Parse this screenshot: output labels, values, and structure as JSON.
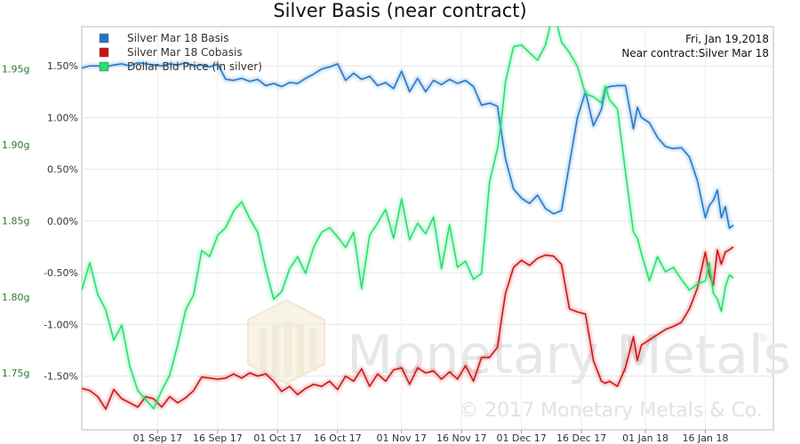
{
  "chart_data": {
    "type": "line",
    "title": "Silver Basis (near contract)",
    "annotation": {
      "date": "Fri, Jan 19,2018",
      "contract": "Near contract:Silver Mar 18"
    },
    "x_tick_labels": [
      "01 Sep 17",
      "16 Sep 17",
      "01 Oct 17",
      "16 Oct 17",
      "01 Nov 17",
      "16 Nov 17",
      "01 Dec 17",
      "16 Dec 17",
      "01 Jan 18",
      "16 Jan 18"
    ],
    "x_ticks": [
      4,
      19,
      34,
      49,
      65,
      80,
      95,
      110,
      126,
      141
    ],
    "xlim": [
      -15,
      158
    ],
    "y_left": {
      "ticks": [
        1.5,
        1.0,
        0.5,
        0.0,
        -0.5,
        -1.0,
        -1.5
      ],
      "tick_labels": [
        "1.50%",
        "1.00%",
        "0.50%",
        "0.00%",
        "-0.50%",
        "-1.00%",
        "-1.50%"
      ],
      "ylim": [
        -2.02,
        1.88
      ]
    },
    "y_right": {
      "ticks": [
        1.95,
        1.9,
        1.85,
        1.8,
        1.75
      ],
      "tick_labels": [
        "1.95g",
        "1.90g",
        "1.85g",
        "1.80g",
        "1.75g"
      ],
      "ylim": [
        1.7127,
        1.9776
      ]
    },
    "grid": true,
    "legend": "top-left",
    "series": [
      {
        "name": "Silver Mar 18 Basis",
        "color": "#1f77c8",
        "axis": "left",
        "x": [
          -15,
          -13,
          -11,
          -9,
          -7,
          -5,
          -3,
          -1,
          1,
          3,
          5,
          7,
          9,
          11,
          13,
          15,
          17,
          19,
          21,
          23,
          25,
          27,
          29,
          31,
          33,
          35,
          37,
          39,
          41,
          43,
          45,
          47,
          49,
          51,
          53,
          55,
          57,
          59,
          61,
          63,
          65,
          67,
          69,
          71,
          73,
          75,
          77,
          79,
          81,
          83,
          85,
          87,
          89,
          90,
          91,
          93,
          95,
          97,
          99,
          101,
          103,
          105,
          107,
          109,
          111,
          113,
          115,
          116,
          117,
          119,
          121,
          123,
          124,
          125,
          127,
          129,
          131,
          133,
          135,
          137,
          139,
          141,
          142,
          143,
          144,
          145,
          146,
          147,
          148
        ],
        "values": [
          1.48,
          1.5,
          1.5,
          1.49,
          1.51,
          1.52,
          1.5,
          1.53,
          1.52,
          1.51,
          1.5,
          1.52,
          1.51,
          1.53,
          1.5,
          1.51,
          1.49,
          1.52,
          1.37,
          1.36,
          1.38,
          1.35,
          1.37,
          1.31,
          1.33,
          1.3,
          1.34,
          1.33,
          1.38,
          1.42,
          1.47,
          1.49,
          1.52,
          1.36,
          1.43,
          1.37,
          1.4,
          1.31,
          1.34,
          1.28,
          1.45,
          1.25,
          1.38,
          1.25,
          1.36,
          1.32,
          1.37,
          1.33,
          1.36,
          1.3,
          1.12,
          1.14,
          1.11,
          0.85,
          0.6,
          0.31,
          0.22,
          0.17,
          0.25,
          0.12,
          0.07,
          0.1,
          0.55,
          1.0,
          1.25,
          0.92,
          1.08,
          1.28,
          1.3,
          1.31,
          1.31,
          0.89,
          1.1,
          1.0,
          0.95,
          0.81,
          0.72,
          0.7,
          0.71,
          0.62,
          0.39,
          0.03,
          0.15,
          0.2,
          0.3,
          0.03,
          0.14,
          -0.07,
          -0.04
        ]
      },
      {
        "name": "Silver Mar 18 Cobasis",
        "color": "#cc1111",
        "axis": "left",
        "x": [
          -15,
          -13,
          -11,
          -9,
          -7,
          -5,
          -3,
          -1,
          1,
          3,
          5,
          7,
          9,
          11,
          13,
          15,
          17,
          19,
          21,
          23,
          25,
          27,
          29,
          31,
          33,
          35,
          37,
          39,
          41,
          43,
          45,
          47,
          49,
          51,
          53,
          55,
          57,
          59,
          61,
          63,
          65,
          67,
          69,
          71,
          73,
          75,
          77,
          79,
          81,
          83,
          85,
          87,
          89,
          90,
          91,
          93,
          95,
          97,
          99,
          101,
          103,
          105,
          107,
          109,
          111,
          113,
          115,
          116,
          117,
          119,
          121,
          123,
          124,
          125,
          127,
          129,
          131,
          133,
          135,
          137,
          139,
          141,
          142,
          143,
          144,
          145,
          146,
          147,
          148
        ],
        "values": [
          -1.62,
          -1.64,
          -1.7,
          -1.82,
          -1.63,
          -1.72,
          -1.76,
          -1.8,
          -1.7,
          -1.72,
          -1.8,
          -1.7,
          -1.76,
          -1.71,
          -1.64,
          -1.51,
          -1.52,
          -1.53,
          -1.52,
          -1.48,
          -1.52,
          -1.47,
          -1.5,
          -1.48,
          -1.55,
          -1.65,
          -1.6,
          -1.68,
          -1.62,
          -1.58,
          -1.6,
          -1.55,
          -1.63,
          -1.5,
          -1.55,
          -1.43,
          -1.6,
          -1.48,
          -1.55,
          -1.44,
          -1.42,
          -1.58,
          -1.42,
          -1.47,
          -1.45,
          -1.53,
          -1.46,
          -1.53,
          -1.4,
          -1.55,
          -1.32,
          -1.32,
          -1.22,
          -0.95,
          -0.7,
          -0.45,
          -0.38,
          -0.43,
          -0.36,
          -0.33,
          -0.34,
          -0.42,
          -0.85,
          -0.88,
          -0.9,
          -1.35,
          -1.55,
          -1.57,
          -1.55,
          -1.6,
          -1.42,
          -1.12,
          -1.35,
          -1.2,
          -1.15,
          -1.1,
          -1.05,
          -1.02,
          -0.98,
          -0.85,
          -0.65,
          -0.3,
          -0.52,
          -0.62,
          -0.28,
          -0.42,
          -0.3,
          -0.28,
          -0.25
        ]
      },
      {
        "name": "Dollar Bid Price (in silver)",
        "color": "#22e06a",
        "axis": "right",
        "x": [
          -15,
          -13,
          -11,
          -9,
          -7,
          -5,
          -3,
          -1,
          1,
          3,
          5,
          7,
          9,
          11,
          13,
          15,
          17,
          19,
          21,
          23,
          25,
          27,
          29,
          31,
          33,
          35,
          37,
          39,
          41,
          43,
          45,
          47,
          49,
          51,
          53,
          55,
          57,
          59,
          61,
          63,
          65,
          67,
          69,
          71,
          73,
          75,
          77,
          79,
          81,
          83,
          85,
          87,
          89,
          90,
          91,
          93,
          95,
          97,
          99,
          101,
          103,
          105,
          107,
          109,
          111,
          113,
          115,
          116,
          117,
          119,
          121,
          123,
          124,
          125,
          127,
          129,
          131,
          133,
          135,
          137,
          139,
          141,
          142,
          143,
          144,
          145,
          146,
          147,
          148
        ],
        "values": [
          1.8045,
          1.8225,
          1.8015,
          1.7915,
          1.7715,
          1.7815,
          1.7545,
          1.7385,
          1.7325,
          1.7265,
          1.7385,
          1.7485,
          1.7685,
          1.7915,
          1.8015,
          1.8305,
          1.8265,
          1.8405,
          1.8455,
          1.8565,
          1.8625,
          1.8515,
          1.8425,
          1.8185,
          1.7985,
          1.8035,
          1.8185,
          1.8265,
          1.8155,
          1.8325,
          1.8425,
          1.8455,
          1.8395,
          1.8325,
          1.8425,
          1.8055,
          1.8405,
          1.8485,
          1.8575,
          1.8385,
          1.8645,
          1.8375,
          1.8485,
          1.8415,
          1.8525,
          1.8185,
          1.8475,
          1.8195,
          1.8235,
          1.8115,
          1.8155,
          1.8755,
          1.8975,
          1.9165,
          1.9415,
          1.9645,
          1.9655,
          1.9605,
          1.9555,
          1.9655,
          1.9875,
          1.9675,
          1.9605,
          1.9515,
          1.9335,
          1.9315,
          1.9275,
          1.9385,
          1.9295,
          1.9235,
          1.8825,
          1.8425,
          1.8385,
          1.8285,
          1.8105,
          1.8265,
          1.8165,
          1.8195,
          1.8115,
          1.8045,
          1.8085,
          1.8105,
          1.8225,
          1.8025,
          1.7985,
          1.7905,
          1.8065,
          1.8145,
          1.8125
        ]
      }
    ]
  },
  "watermark": {
    "brand": "Monetary Metals",
    "registered": "®",
    "copyright": "© 2017 Monetary Metals & Co."
  }
}
